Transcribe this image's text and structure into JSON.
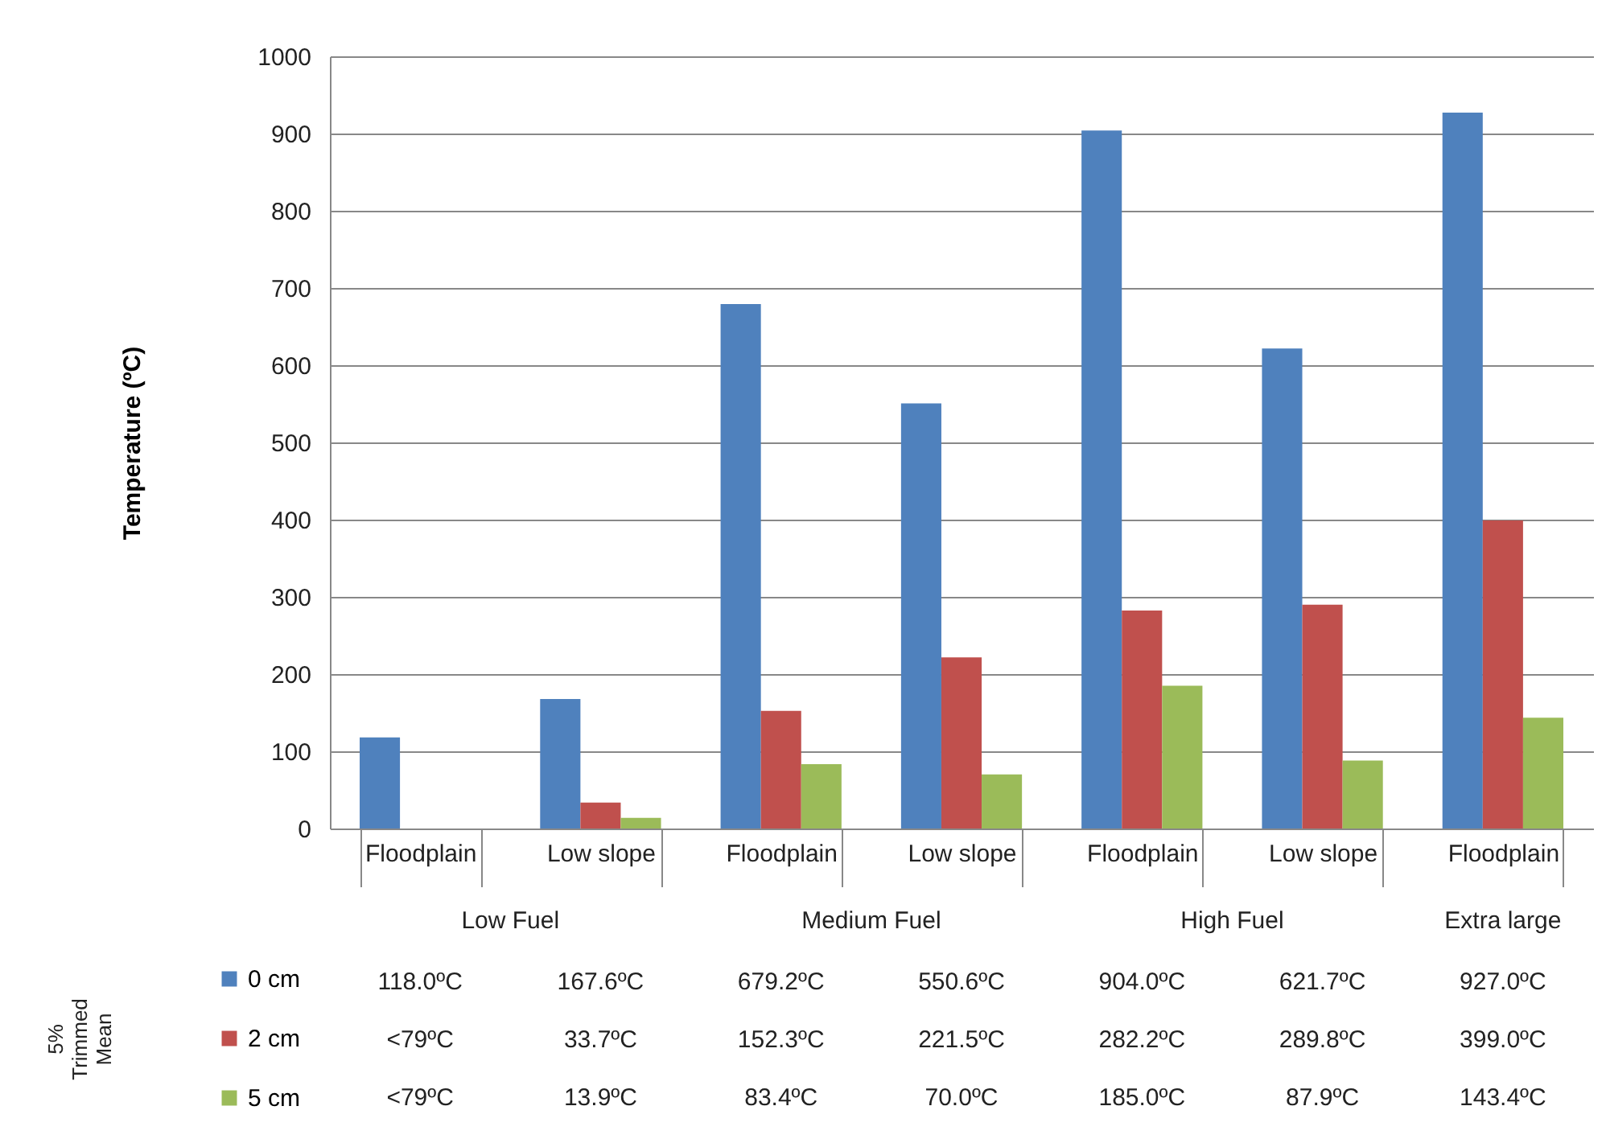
{
  "chart_data": {
    "type": "bar",
    "ylabel": "Temperature (ºC)",
    "categories": [
      "Floodplain",
      "Low slope",
      "Floodplain",
      "Low slope",
      "Floodplain",
      "Low slope",
      "Floodplain"
    ],
    "series": [
      {
        "name": "0 cm",
        "color": "#4f81bd",
        "values": [
          118.0,
          167.6,
          679.2,
          550.6,
          904.0,
          621.7,
          927.0
        ],
        "value_labels": [
          "118.0ºC",
          "167.6ºC",
          "679.2ºC",
          "550.6ºC",
          "904.0ºC",
          "621.7ºC",
          "927.0ºC"
        ]
      },
      {
        "name": "2 cm",
        "color": "#c0504d",
        "values": [
          null,
          33.7,
          152.3,
          221.5,
          282.2,
          289.8,
          399.0
        ],
        "value_labels": [
          "<79ºC",
          "33.7ºC",
          "152.3ºC",
          "221.5ºC",
          "282.2ºC",
          "289.8ºC",
          "399.0ºC"
        ]
      },
      {
        "name": "5 cm",
        "color": "#9bbb59",
        "values": [
          null,
          13.9,
          83.4,
          70.0,
          185.0,
          87.9,
          143.4
        ],
        "value_labels": [
          "<79ºC",
          "13.9ºC",
          "83.4ºC",
          "70.0ºC",
          "185.0ºC",
          "87.9ºC",
          "143.4ºC"
        ]
      }
    ],
    "annotations": [
      "Low Fuel",
      "Medium Fuel",
      "High Fuel",
      "Extra large",
      "5% Trimmed Mean"
    ],
    "ylim": [
      0,
      1000
    ],
    "yticks": [
      0,
      100,
      200,
      300,
      400,
      500,
      600,
      700,
      800,
      900,
      1000
    ],
    "grid": "y",
    "legend": "bottom left"
  }
}
